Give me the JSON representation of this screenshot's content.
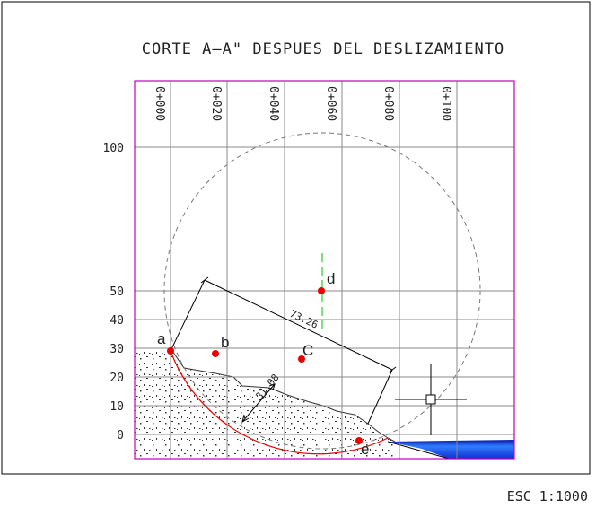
{
  "title": "CORTE A–A\" DESPUES DEL DESLIZAMIENTO",
  "stations": [
    "0+000",
    "0+020",
    "0+040",
    "0+060",
    "0+080",
    "0+100"
  ],
  "elevations": [
    "100",
    "50",
    "40",
    "30",
    "20",
    "10",
    "0"
  ],
  "points": [
    "a",
    "b",
    "C",
    "d",
    "e"
  ],
  "dimensions": [
    "73.26",
    "31.08"
  ],
  "scale": "ESC_1:1000"
}
